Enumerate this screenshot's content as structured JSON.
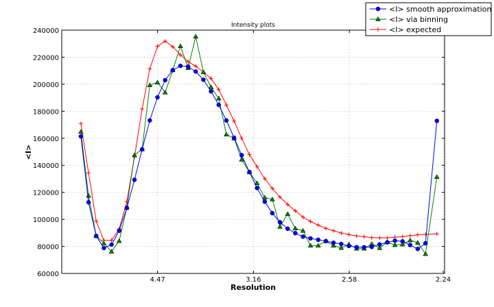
{
  "chart_data": {
    "type": "line",
    "title": "Intensity plots",
    "xlabel": "Resolution",
    "ylabel": "<I>",
    "x_scale": "reciprocal-square (1/d^2)",
    "xticks": [
      "4.47",
      "3.16",
      "2.58",
      "2.24"
    ],
    "yticks": [
      "60000",
      "80000",
      "100000",
      "120000",
      "140000",
      "160000",
      "180000",
      "200000",
      "220000",
      "240000"
    ],
    "ylim": [
      60000,
      240000
    ],
    "grid": true,
    "legend_placement": "top-right (outside)",
    "x": [
      10.0,
      8.452,
      7.454,
      6.742,
      6.202,
      5.774,
      5.423,
      5.13,
      4.88,
      4.663,
      4.472,
      4.303,
      4.152,
      4.016,
      3.892,
      3.78,
      3.676,
      3.581,
      3.492,
      3.41,
      3.333,
      3.262,
      3.194,
      3.131,
      3.071,
      3.015,
      2.962,
      2.911,
      2.863,
      2.817,
      2.774,
      2.732,
      2.692,
      2.654,
      2.617,
      2.582,
      2.548,
      2.516,
      2.485,
      2.454,
      2.425,
      2.397,
      2.37,
      2.344,
      2.319,
      2.294,
      2.259
    ],
    "series": [
      {
        "name": "<I> smooth approximation",
        "color": "#0000ff",
        "marker": "circle",
        "values": [
          161400,
          112600,
          87700,
          78800,
          81300,
          91600,
          108500,
          129300,
          151800,
          173200,
          190300,
          203000,
          210400,
          213600,
          213000,
          209400,
          203300,
          194700,
          184700,
          173200,
          160400,
          147500,
          135000,
          123200,
          113100,
          104600,
          97900,
          93100,
          89800,
          87200,
          85900,
          84900,
          83900,
          82700,
          81800,
          80300,
          79400,
          79400,
          79600,
          81500,
          83000,
          84200,
          83700,
          81000,
          78100,
          82300,
          172900
        ]
      },
      {
        "name": "<I> via binning",
        "color": "#007f00",
        "marker": "triangle",
        "values": [
          164800,
          117500,
          87700,
          82300,
          76200,
          84000,
          108700,
          147500,
          151900,
          199300,
          201300,
          193900,
          210400,
          228200,
          212000,
          235300,
          208900,
          197900,
          189500,
          162800,
          159900,
          144200,
          135000,
          126800,
          116100,
          114800,
          94500,
          104000,
          93300,
          91600,
          80600,
          80600,
          84000,
          80600,
          78900,
          81500,
          78400,
          78400,
          81800,
          78800,
          83200,
          81000,
          81500,
          84500,
          82700,
          74400,
          131400
        ]
      },
      {
        "name": "<I> expected",
        "color": "#ff0000",
        "marker": "plus",
        "values": [
          170900,
          134400,
          98700,
          84500,
          84500,
          92900,
          113200,
          146200,
          181700,
          211300,
          228000,
          231900,
          227700,
          221700,
          216700,
          213300,
          208900,
          204300,
          196000,
          184600,
          172700,
          160000,
          148000,
          139000,
          130100,
          122900,
          116400,
          111000,
          106300,
          101700,
          98400,
          95800,
          93300,
          91600,
          89900,
          88800,
          87700,
          87200,
          86500,
          86300,
          86300,
          86800,
          87200,
          87900,
          88600,
          88900,
          89300
        ]
      }
    ]
  }
}
